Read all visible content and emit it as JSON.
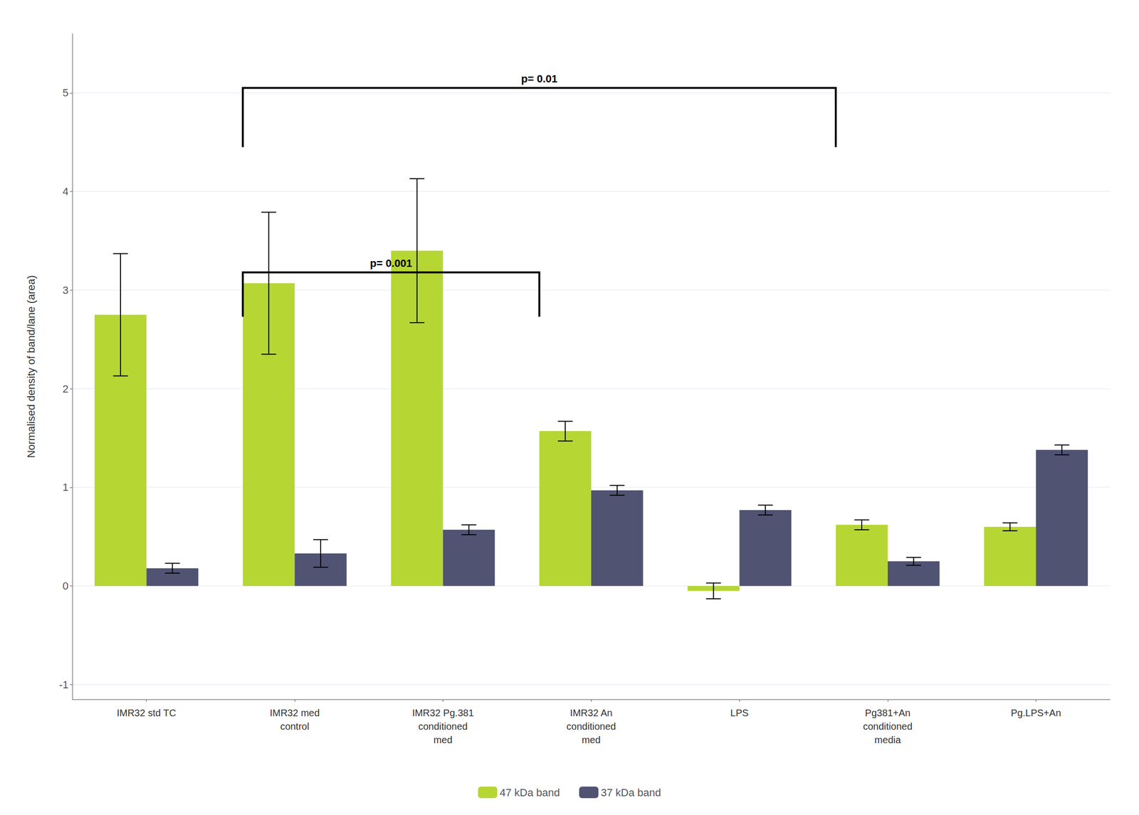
{
  "chart_data": {
    "type": "bar",
    "categories": [
      "IMR32 std TC",
      "IMR32 med\ncontrol",
      "IMR32 Pg.381\nconditioned\nmed",
      "IMR32 An\nconditioned\nmed",
      "LPS",
      "Pg381+An\nconditioned\nmedia",
      "Pg.LPS+An"
    ],
    "series": [
      {
        "name": "47 kDa band",
        "values": [
          2.75,
          3.07,
          3.4,
          1.57,
          -0.05,
          0.62,
          0.6
        ],
        "errors": [
          0.62,
          0.72,
          0.73,
          0.1,
          0.08,
          0.05,
          0.04
        ]
      },
      {
        "name": "37 kDa band",
        "values": [
          0.18,
          0.33,
          0.57,
          0.97,
          0.77,
          0.25,
          1.38
        ],
        "errors": [
          0.05,
          0.14,
          0.05,
          0.05,
          0.05,
          0.04,
          0.05
        ]
      }
    ],
    "ylabel": "Normalised density of band/lane (area)",
    "ylim": [
      -1.15,
      5.6
    ],
    "yticks": [
      -1,
      0,
      1,
      2,
      3,
      4,
      5
    ],
    "grid": true,
    "legend": "bottom",
    "annotations": [
      {
        "text": "p= 0.001",
        "from": 1,
        "to": 3,
        "y": 3.18,
        "drop": 0.45
      },
      {
        "text": "p= 0.01",
        "from": 1,
        "to": 5,
        "y": 5.05,
        "drop": 0.6
      }
    ]
  }
}
